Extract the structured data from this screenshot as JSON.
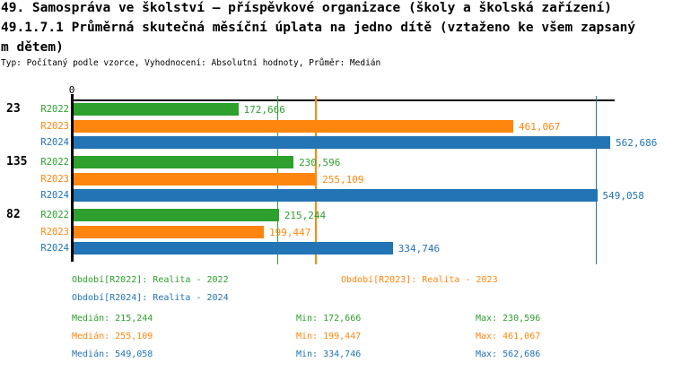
{
  "title": {
    "line1": "49. Samospráva ve školství – příspěvkové organizace (školy a školská zařízení)",
    "line2": "49.1.7.1 Průměrná skutečná měsíční úplata na jedno dítě (vztaženo ke všem zapsaný",
    "line3": "m dětem)",
    "meta": "Typ: Počítaný podle vzorce, Vyhodnocení: Absolutní hodnoty, Průměr: Medián"
  },
  "colors": {
    "R2022": "#2da02d",
    "R2023": "#ff860e",
    "R2024": "#2274b5",
    "axis": "#000000",
    "background": "#ffffff"
  },
  "chart_data": {
    "type": "bar",
    "orientation": "horizontal",
    "grid": false,
    "value_axis": {
      "zero_label": "0",
      "xlim": [
        0,
        570000
      ]
    },
    "series": [
      "R2022",
      "R2023",
      "R2024"
    ],
    "categories": [
      "23",
      "135",
      "82"
    ],
    "groups": [
      {
        "label": "23",
        "bars": [
          {
            "series": "R2022",
            "value": 172666,
            "value_label": "172,666"
          },
          {
            "series": "R2023",
            "value": 461067,
            "value_label": "461,067"
          },
          {
            "series": "R2024",
            "value": 562686,
            "value_label": "562,686"
          }
        ]
      },
      {
        "label": "135",
        "bars": [
          {
            "series": "R2022",
            "value": 230596,
            "value_label": "230,596"
          },
          {
            "series": "R2023",
            "value": 255109,
            "value_label": "255,109"
          },
          {
            "series": "R2024",
            "value": 549058,
            "value_label": "549,058"
          }
        ]
      },
      {
        "label": "82",
        "bars": [
          {
            "series": "R2022",
            "value": 215244,
            "value_label": "215,244"
          },
          {
            "series": "R2023",
            "value": 199447,
            "value_label": "199,447"
          },
          {
            "series": "R2024",
            "value": 334746,
            "value_label": "334,746"
          }
        ]
      }
    ],
    "medians": [
      {
        "series": "R2022",
        "value": 215244
      },
      {
        "series": "R2023",
        "value": 255109
      },
      {
        "series": "R2024",
        "value": 549058
      }
    ]
  },
  "legend": [
    {
      "series": "R2022",
      "label": "Období[R2022]: Realita - 2022"
    },
    {
      "series": "R2023",
      "label": "Období[R2023]: Realita - 2023"
    },
    {
      "series": "R2024",
      "label": "Období[R2024]: Realita - 2024"
    }
  ],
  "stats": [
    {
      "series": "R2022",
      "median": "Medián: 215,244",
      "min": "Min: 172,666",
      "max": "Max: 230,596"
    },
    {
      "series": "R2023",
      "median": "Medián: 255,109",
      "min": "Min: 199,447",
      "max": "Max: 461,067"
    },
    {
      "series": "R2024",
      "median": "Medián: 549,058",
      "min": "Min: 334,746",
      "max": "Max: 562,686"
    }
  ]
}
